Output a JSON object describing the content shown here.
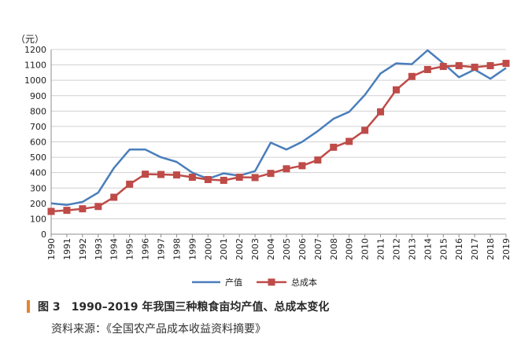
{
  "figure": {
    "caption": "图 3　1990–2019 年我国三种粮食亩均产值、总成本变化",
    "source": "资料来源：《全国农产品成本收益资料摘要》",
    "unit": "（元）"
  },
  "colors": {
    "output_value": "#4a7ebb",
    "total_cost": "#be4b48",
    "accent_bar": "#e8832a"
  },
  "chart_data": {
    "type": "line",
    "title": "",
    "xlabel": "",
    "ylabel": "（元）",
    "ylim": [
      0,
      1200
    ],
    "yticks": [
      0,
      100,
      200,
      300,
      400,
      500,
      600,
      700,
      800,
      900,
      1000,
      1100,
      1200
    ],
    "grid": true,
    "legend_position": "bottom-center",
    "x": [
      "1990",
      "1991",
      "1992",
      "1993",
      "1994",
      "1995",
      "1996",
      "1997",
      "1998",
      "1999",
      "2000",
      "2001",
      "2002",
      "2003",
      "2004",
      "2005",
      "2006",
      "2007",
      "2008",
      "2009",
      "2010",
      "2011",
      "2012",
      "2013",
      "2014",
      "2015",
      "2016",
      "2017",
      "2018",
      "2019"
    ],
    "series": [
      {
        "name": "产值",
        "color": "#4a7ebb",
        "marker": "none",
        "values": [
          200,
          190,
          210,
          270,
          430,
          550,
          550,
          500,
          470,
          400,
          360,
          395,
          380,
          410,
          595,
          550,
          600,
          670,
          750,
          795,
          905,
          1045,
          1110,
          1105,
          1195,
          1110,
          1020,
          1070,
          1010,
          1080
        ]
      },
      {
        "name": "总成本",
        "color": "#be4b48",
        "marker": "square",
        "values": [
          148,
          155,
          165,
          180,
          240,
          325,
          390,
          388,
          385,
          370,
          355,
          350,
          370,
          368,
          395,
          425,
          445,
          482,
          565,
          603,
          675,
          795,
          938,
          1025,
          1070,
          1090,
          1095,
          1085,
          1095,
          1110
        ]
      }
    ]
  }
}
